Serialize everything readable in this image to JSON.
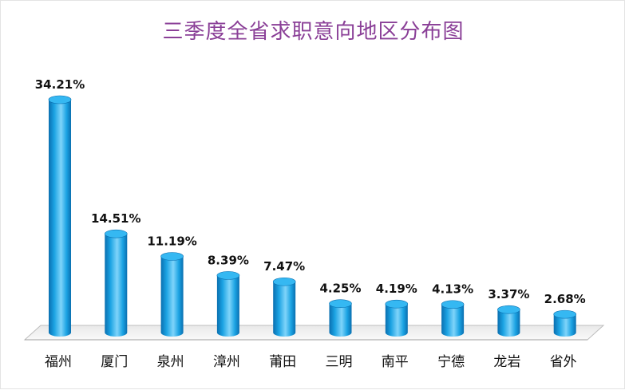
{
  "chart_data": {
    "type": "bar",
    "title": "三季度全省求职意向地区分布图",
    "categories": [
      "福州",
      "厦门",
      "泉州",
      "漳州",
      "莆田",
      "三明",
      "南平",
      "宁德",
      "龙岩",
      "省外"
    ],
    "values": [
      34.21,
      14.51,
      11.19,
      8.39,
      7.47,
      4.25,
      4.19,
      4.13,
      3.37,
      2.68
    ],
    "value_labels": [
      "34.21%",
      "14.51%",
      "11.19%",
      "8.39%",
      "7.47%",
      "4.25%",
      "4.19%",
      "4.13%",
      "3.37%",
      "2.68%"
    ],
    "xlabel": "",
    "ylabel": "",
    "grid": false,
    "bar_style": "3d-cylinder",
    "colors": {
      "bar": "#1ba3e3",
      "bar_dark": "#0a6fb0",
      "bar_light": "#7fd4fa",
      "bar_top": "#35b8f2",
      "floor": "#f2f2f2",
      "floor_edge": "#bdbdbd",
      "title": "#8a3f97"
    }
  }
}
